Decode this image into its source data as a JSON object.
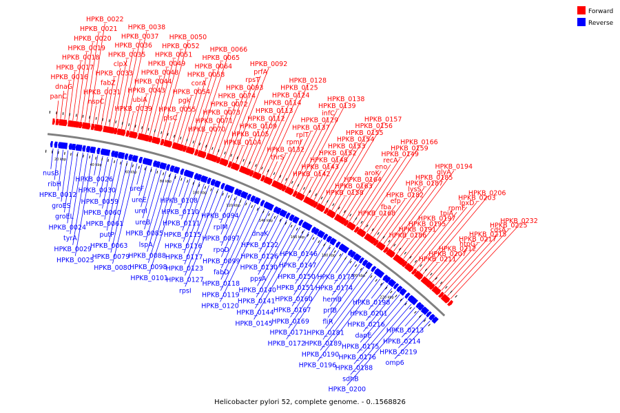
{
  "title": "Helicobacter pylori 52, complete genome. - 0..1568826",
  "legend": [
    {
      "label": "Forward",
      "color": "#ff0000"
    },
    {
      "label": "Reverse",
      "color": "#0000ff"
    }
  ],
  "colors": {
    "forward": "#ff0000",
    "reverse": "#0000ff",
    "backbone": "#808080"
  },
  "kbp_marks": [
    "20 kbp",
    "40 kbp",
    "60 kbp",
    "80 kbp",
    "100 kbp",
    "120 kbp",
    "140 kbp",
    "160 kbp",
    "180 kbp",
    "200 kbp",
    "220 kbp"
  ],
  "forward_labels": [
    "panC",
    "dnaG",
    "HPKB_0016",
    "HPKB_0017",
    "HPKB_0018",
    "HPKB_0019",
    "HPKB_0020",
    "HPKB_0021",
    "HPKB_0022",
    "nspC",
    "HPKB_0031",
    "fabZ",
    "HPKB_0033",
    "clpX",
    "HPKB_0035",
    "HPKB_0036",
    "HPKB_0037",
    "HPKB_0038",
    "HPKB_0039",
    "ubiA",
    "HPKB_0043",
    "HPKB_0044",
    "HPKB_0048",
    "HPKB_0049",
    "HPKB_0051",
    "HPKB_0052",
    "HPKB_0050",
    "plsC",
    "HPKB_0055",
    "pgk",
    "HPKB_0054",
    "corA",
    "HPKB_0058",
    "HPKB_0064",
    "HPKB_0065",
    "HPKB_0066",
    "HPKB_0070",
    "HPKB_0071",
    "HPKB_0073",
    "HPKB_0072",
    "HPKB_0074",
    "HPKB_0093",
    "rpsT",
    "prfA",
    "HPKB_0092",
    "HPKB_0104",
    "HPKB_0105",
    "HPKB_0109",
    "HPKB_0112",
    "HPKB_0113",
    "HPKB_0114",
    "HPKB_0124",
    "HPKB_0125",
    "HPKB_0128",
    "thrS",
    "HPKB_0132",
    "rpmI",
    "rplT",
    "HPKB_0137",
    "HPKB_0129",
    "infC",
    "HPKB_0139",
    "HPKB_0138",
    "HPKB_0142",
    "HPKB_0143",
    "HPKB_0148",
    "HPKB_0152",
    "HPKB_0153",
    "HPKB_0154",
    "HPKB_0155",
    "HPKB_0156",
    "HPKB_0157",
    "HPKB_0158",
    "HPKB_0163",
    "HPKB_0164",
    "aroK",
    "eno",
    "recA",
    "HPKB_0149",
    "HPKB_0159",
    "HPKB_0166",
    "HPKB_0168",
    "fba",
    "efp",
    "HPKB_0182",
    "lysS",
    "HPKB_0187",
    "HPKB_0185",
    "glyA",
    "HPKB_0194",
    "HPKB_0186",
    "HPKB_0191",
    "HPKB_0195",
    "HPKB_0197",
    "tpiA",
    "rpmF",
    "lpxD",
    "HPKB_0203",
    "HPKB_0206",
    "HPKB_0211",
    "HPKB_0207",
    "HPKB_0212",
    "htpG",
    "HPKB_0217",
    "HPKB_0215",
    "cdsA",
    "HPKB_0225",
    "HPKB_0232"
  ],
  "reverse_labels": [
    "nusB",
    "ribH",
    "HPKB_0012",
    "groES",
    "groEL",
    "HPKB_0024",
    "tyrA",
    "HPKB_0029",
    "HPKB_0025",
    "HPKB_0026",
    "HPKB_0030",
    "HPKB_0059",
    "HPKB_0060",
    "HPKB_0061",
    "putP",
    "HPKB_0063",
    "HPKB_0079",
    "HPKB_0080",
    "ureF",
    "ureE",
    "ureI",
    "ureB",
    "HPKB_0085",
    "lspA",
    "HPKB_0088",
    "HPKB_0098",
    "HPKB_0101",
    "HPKB_0108",
    "HPKB_0110",
    "HPKB_0111",
    "HPKB_0115",
    "HPKB_0116",
    "HPKB_0117",
    "HPKB_0123",
    "HPKB_0127",
    "rpsI",
    "HPKB_0094",
    "rplM",
    "HPKB_0097",
    "rpoD",
    "HPKB_0099",
    "fabD",
    "HPKB_0118",
    "HPKB_0119",
    "HPKB_0120",
    "dnaK",
    "HPKB_0122",
    "HPKB_0126",
    "HPKB_0130",
    "ppsA",
    "HPKB_0140",
    "HPKB_0141",
    "HPKB_0144",
    "HPKB_0145",
    "HPKB_0146",
    "HPKB_0147",
    "HPKB_0150",
    "HPKB_0151",
    "HPKB_0160",
    "HPKB_0167",
    "HPKB_0169",
    "HPKB_0171",
    "HPKB_0172",
    "HPKB_0173",
    "HPKB_0174",
    "hemB",
    "prfB",
    "fliR",
    "HPKB_0181",
    "HPKB_0189",
    "HPKB_0190",
    "HPKB_0196",
    "HPKB_0198",
    "HPKB_0201",
    "HPKB_0216",
    "dapE",
    "HPKB_0175",
    "HPKB_0176",
    "HPKB_0188",
    "sdhB",
    "HPKB_0200",
    "HPKB_0213",
    "HPKB_0214",
    "HPKB_0219",
    "omp6"
  ]
}
